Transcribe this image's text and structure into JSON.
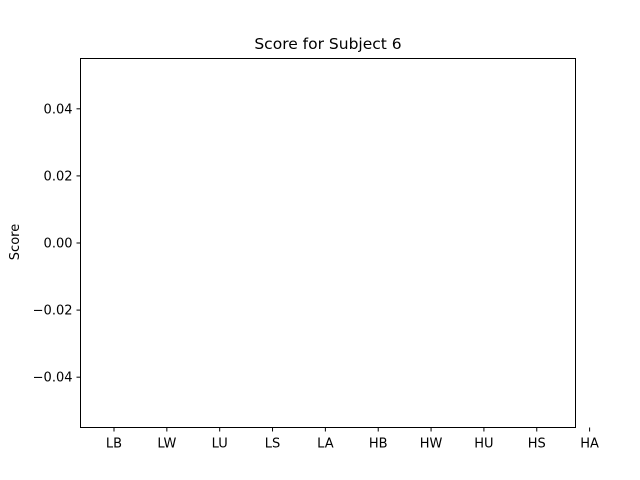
{
  "chart_data": {
    "type": "bar",
    "title": "Score for Subject 6",
    "xlabel": "",
    "ylabel": "Score",
    "categories": [
      "LB",
      "LW",
      "LU",
      "LS",
      "LA",
      "HB",
      "HW",
      "HU",
      "HS",
      "HA"
    ],
    "values": [
      0,
      0,
      0,
      0,
      0,
      0,
      0,
      0,
      0,
      0
    ],
    "ylim": [
      -0.055,
      0.055
    ],
    "yticks": [
      0.04,
      0.02,
      0.0,
      -0.02,
      -0.04
    ],
    "ytick_labels": [
      "0.04",
      "0.02",
      "0.00",
      "−0.02",
      "−0.04"
    ],
    "grid": false,
    "colors": {
      "axis": "#000000",
      "background": "#ffffff",
      "bar": "#1f77b4"
    }
  }
}
